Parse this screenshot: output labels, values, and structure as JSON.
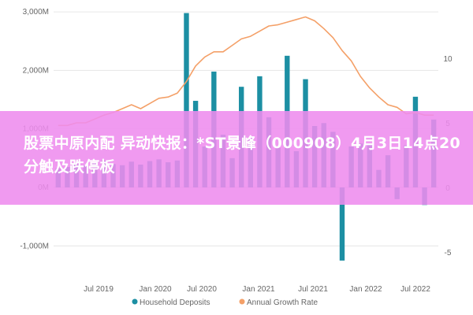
{
  "headline": "股票中原内配 异动快报：*ST景峰（000908）4月3日14点20分触及跌停板",
  "colors": {
    "bar": "#1c8fa3",
    "line": "#f4a068",
    "banner": "#ee8cee",
    "tick_text": "#666666",
    "grid": "#e6e6e6"
  },
  "chart_data": {
    "type": "bar",
    "title": "",
    "xlabel": "",
    "ylabel_left": "",
    "ylabel_right": "",
    "ylim_left": [
      -1500,
      3000
    ],
    "ylim_right": [
      -7.5,
      13.75
    ],
    "left_ticks": [
      {
        "value": 3000,
        "label": "3,000M"
      },
      {
        "value": 2000,
        "label": "2,000M"
      },
      {
        "value": 1000,
        "label": "1,000M"
      },
      {
        "value": 0,
        "label": "0M"
      },
      {
        "value": -1000,
        "label": "-1,000M"
      }
    ],
    "right_ticks": [
      {
        "value": 10,
        "label": "10"
      },
      {
        "value": 5,
        "label": "5"
      },
      {
        "value": 0,
        "label": "0"
      },
      {
        "value": -5,
        "label": "-5"
      }
    ],
    "x_ticks": [
      "Jul 2019",
      "Jan 2020",
      "Jul 2020",
      "Jan 2021",
      "Jul 2021",
      "Jan 2022",
      "Jul 2022"
    ],
    "grid": "horizontal",
    "legend_position": "bottom-center",
    "series": [
      {
        "name": "Household Deposits",
        "kind": "bar",
        "axis": "left",
        "values": [
          330,
          350,
          400,
          380,
          420,
          460,
          400,
          380,
          440,
          390,
          450,
          480,
          430,
          460,
          2980,
          1480,
          700,
          1980,
          900,
          500,
          1720,
          850,
          1900,
          1200,
          680,
          2250,
          620,
          1850,
          1050,
          1100,
          950,
          -1250,
          700,
          750,
          750,
          300,
          550,
          -200,
          720,
          1550,
          -300,
          1160
        ]
      },
      {
        "name": "Annual Growth Rate",
        "kind": "line",
        "axis": "right",
        "values": [
          4.8,
          4.8,
          5.0,
          5.0,
          5.3,
          5.6,
          5.8,
          6.1,
          6.4,
          6.1,
          6.5,
          6.9,
          7.0,
          7.3,
          8.2,
          9.4,
          10.1,
          10.5,
          10.5,
          11.0,
          11.5,
          11.7,
          12.1,
          12.5,
          12.6,
          12.8,
          13.0,
          13.2,
          12.9,
          12.3,
          11.6,
          10.6,
          9.8,
          8.6,
          7.7,
          7.0,
          6.4,
          6.2,
          5.7,
          5.8,
          5.6,
          5.6
        ]
      }
    ]
  }
}
